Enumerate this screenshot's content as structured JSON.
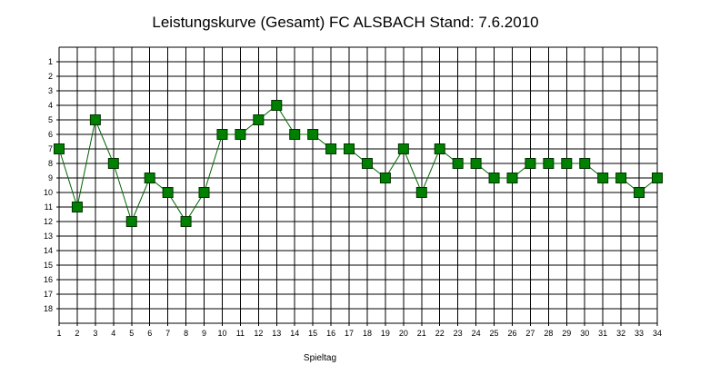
{
  "chart_data": {
    "type": "line",
    "title": "Leistungskurve (Gesamt) FC ALSBACH Stand: 7.6.2010",
    "xlabel": "Spieltag",
    "ylabel": "",
    "x": [
      1,
      2,
      3,
      4,
      5,
      6,
      7,
      8,
      9,
      10,
      11,
      12,
      13,
      14,
      15,
      16,
      17,
      18,
      19,
      20,
      21,
      22,
      23,
      24,
      25,
      26,
      27,
      28,
      29,
      30,
      31,
      32,
      33,
      34
    ],
    "series": [
      {
        "values": [
          7,
          11,
          5,
          8,
          12,
          9,
          10,
          12,
          10,
          6,
          6,
          5,
          4,
          6,
          6,
          7,
          7,
          8,
          9,
          7,
          10,
          7,
          8,
          8,
          9,
          9,
          8,
          8,
          8,
          8,
          9,
          9,
          10,
          9
        ]
      }
    ],
    "xlim": [
      1,
      34
    ],
    "ylim": [
      1,
      18
    ],
    "y_inverted": true,
    "y_ticks": [
      "1",
      "2",
      "3",
      "4",
      "5",
      "6",
      "7",
      "8",
      "9",
      "10",
      "11",
      "12",
      "13",
      "14",
      "15",
      "16",
      "17",
      "18"
    ],
    "x_ticks": [
      "1",
      "2",
      "3",
      "4",
      "5",
      "6",
      "7",
      "8",
      "9",
      "10",
      "11",
      "12",
      "13",
      "14",
      "15",
      "16",
      "17",
      "18",
      "19",
      "20",
      "21",
      "22",
      "23",
      "24",
      "25",
      "26",
      "27",
      "28",
      "29",
      "30",
      "31",
      "32",
      "33",
      "34"
    ],
    "grid": true,
    "colors": {
      "line": "#006400",
      "marker": "#008000",
      "marker_border": "#003300",
      "grid": "#000000"
    }
  }
}
